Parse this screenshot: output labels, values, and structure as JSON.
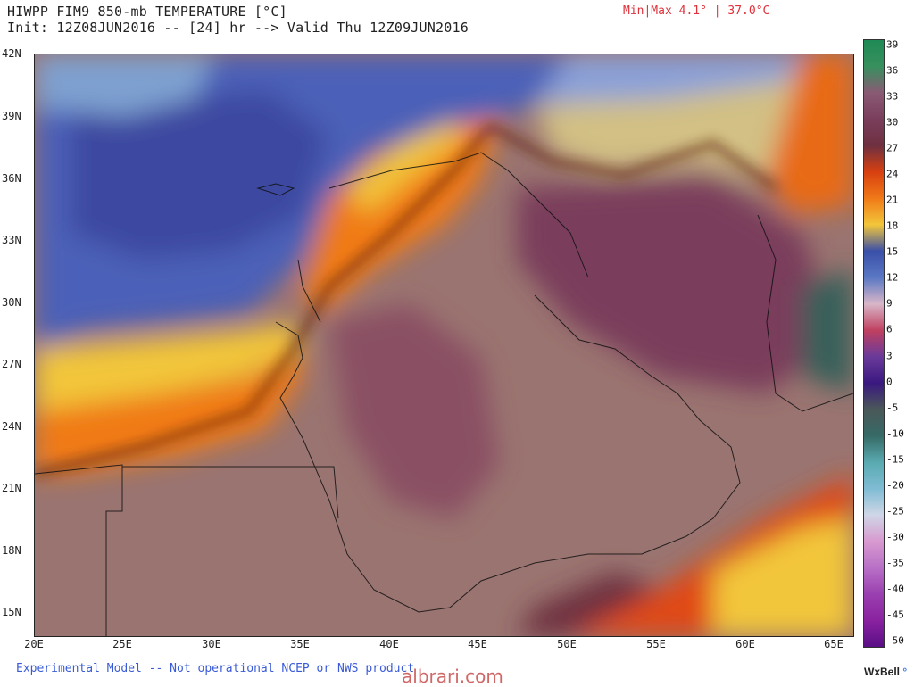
{
  "header": {
    "title": "HIWPP FIM9 850-mb TEMPERATURE [°C]",
    "init_line": "Init: 12Z08JUN2016 -- [24] hr --> Valid Thu 12Z09JUN2016",
    "minmax": "Min|Max 4.1° | 37.0°C"
  },
  "map": {
    "lat_labels": [
      "42N",
      "39N",
      "36N",
      "33N",
      "30N",
      "27N",
      "24N",
      "21N",
      "18N",
      "15N"
    ],
    "lon_labels": [
      "20E",
      "25E",
      "30E",
      "35E",
      "40E",
      "45E",
      "50E",
      "55E",
      "60E",
      "65E"
    ]
  },
  "colorbar": {
    "labels": [
      "39",
      "36",
      "33",
      "30",
      "27",
      "24",
      "21",
      "18",
      "15",
      "12",
      "9",
      "6",
      "3",
      "0",
      "-5",
      "-10",
      "-15",
      "-20",
      "-25",
      "-30",
      "-35",
      "-40",
      "-45",
      "-50"
    ],
    "colors": [
      "#1f8a55",
      "#37905e",
      "#8a5a74",
      "#7a3e5c",
      "#6e3040",
      "#d84010",
      "#f07a18",
      "#f2c63a",
      "#3a4fa8",
      "#5a78c4",
      "#d8b6c8",
      "#c04060",
      "#6a3a9a",
      "#3a1880",
      "#4a5858",
      "#366a66",
      "#59aab0",
      "#7fbcd4",
      "#cfd6e6",
      "#d89ad0",
      "#b870c6",
      "#9a40b0",
      "#8a22a0",
      "#5a0e86"
    ]
  },
  "footer": {
    "note": "Experimental Model -- Not operational NCEP or NWS product",
    "watermark": "albrari.com",
    "brand": "WxBell"
  }
}
